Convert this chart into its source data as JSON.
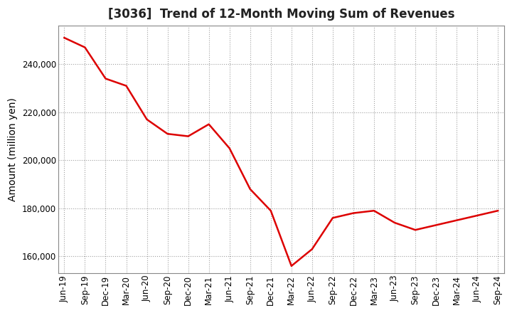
{
  "title": "[3036]  Trend of 12-Month Moving Sum of Revenues",
  "ylabel": "Amount (million yen)",
  "line_color": "#dd0000",
  "background_color": "#ffffff",
  "plot_bg_color": "#ffffff",
  "grid_color": "#888888",
  "xlabels": [
    "Jun-19",
    "Sep-19",
    "Dec-19",
    "Mar-20",
    "Jun-20",
    "Sep-20",
    "Dec-20",
    "Mar-21",
    "Jun-21",
    "Sep-21",
    "Dec-21",
    "Mar-22",
    "Jun-22",
    "Sep-22",
    "Dec-22",
    "Mar-23",
    "Jun-23",
    "Sep-23",
    "Dec-23",
    "Mar-24",
    "Jun-24",
    "Sep-24"
  ],
  "values": [
    251000,
    247000,
    234000,
    231000,
    217000,
    211000,
    210000,
    215000,
    205000,
    188000,
    179000,
    156000,
    163000,
    176000,
    178000,
    179000,
    174000,
    171000,
    173000,
    175000,
    177000,
    179000
  ],
  "ylim": [
    153000,
    256000
  ],
  "yticks": [
    160000,
    180000,
    200000,
    220000,
    240000
  ],
  "title_fontsize": 12,
  "label_fontsize": 10,
  "tick_fontsize": 8.5
}
